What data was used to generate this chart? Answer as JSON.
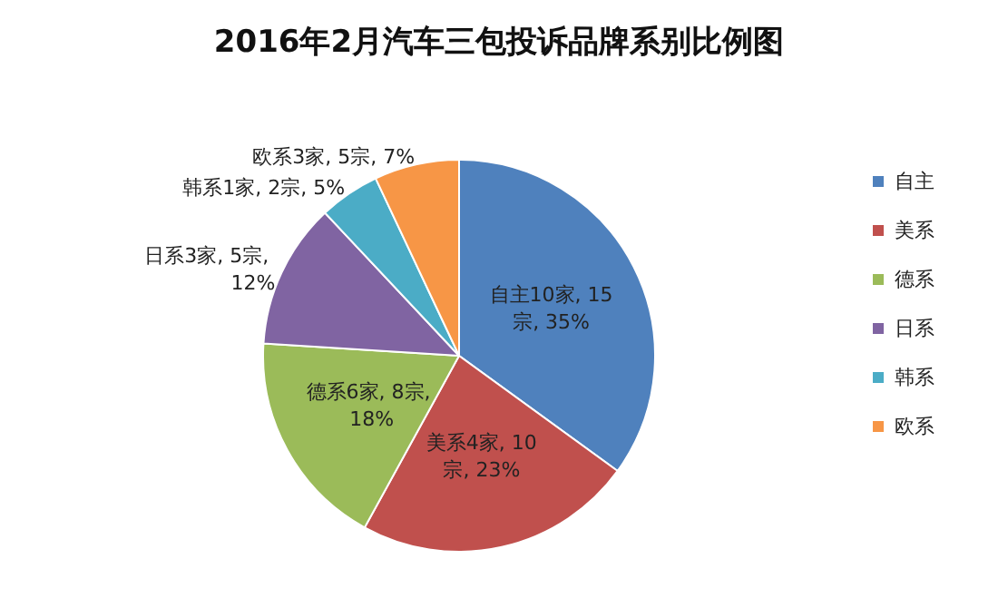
{
  "chart_data": {
    "type": "pie",
    "title": "2016年2月汽车三包投诉品牌系别比例图",
    "categories": [
      "自主",
      "美系",
      "德系",
      "日系",
      "韩系",
      "欧系"
    ],
    "values": [
      35,
      23,
      18,
      12,
      5,
      7
    ],
    "colors": [
      "#4f81bd",
      "#c0504d",
      "#9bbb59",
      "#8064a2",
      "#4bacc6",
      "#f79646"
    ],
    "value_labels": [
      "自主10家, 15宗, 35%",
      "美系4家, 10宗, 23%",
      "德系6家, 8宗, 18%",
      "日系3家, 5宗, 12%",
      "韩系1家, 2宗, 5%",
      "欧系3家, 5宗, 7%"
    ],
    "legend": "right"
  }
}
